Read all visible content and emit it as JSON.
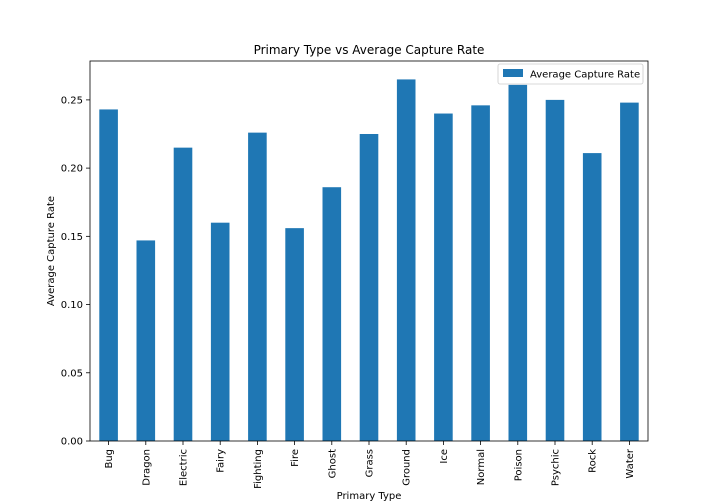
{
  "chart_data": {
    "type": "bar",
    "title": "Primary Type vs Average Capture Rate",
    "xlabel": "Primary Type",
    "ylabel": "Average Capture Rate",
    "categories": [
      "Bug",
      "Dragon",
      "Electric",
      "Fairy",
      "Fighting",
      "Fire",
      "Ghost",
      "Grass",
      "Ground",
      "Ice",
      "Normal",
      "Poison",
      "Psychic",
      "Rock",
      "Water"
    ],
    "series": [
      {
        "name": "Average Capture Rate",
        "values": [
          0.243,
          0.147,
          0.215,
          0.16,
          0.226,
          0.156,
          0.186,
          0.225,
          0.265,
          0.24,
          0.246,
          0.261,
          0.25,
          0.211,
          0.248
        ]
      }
    ],
    "ylim": [
      0,
      0.2785
    ],
    "yticks": [
      0.0,
      0.05,
      0.1,
      0.15,
      0.2,
      0.25
    ],
    "ytick_labels": [
      "0.00",
      "0.05",
      "0.10",
      "0.15",
      "0.20",
      "0.25"
    ],
    "legend_position": "top-right",
    "grid": false,
    "colors": {
      "bar": "#1f77b4"
    }
  }
}
